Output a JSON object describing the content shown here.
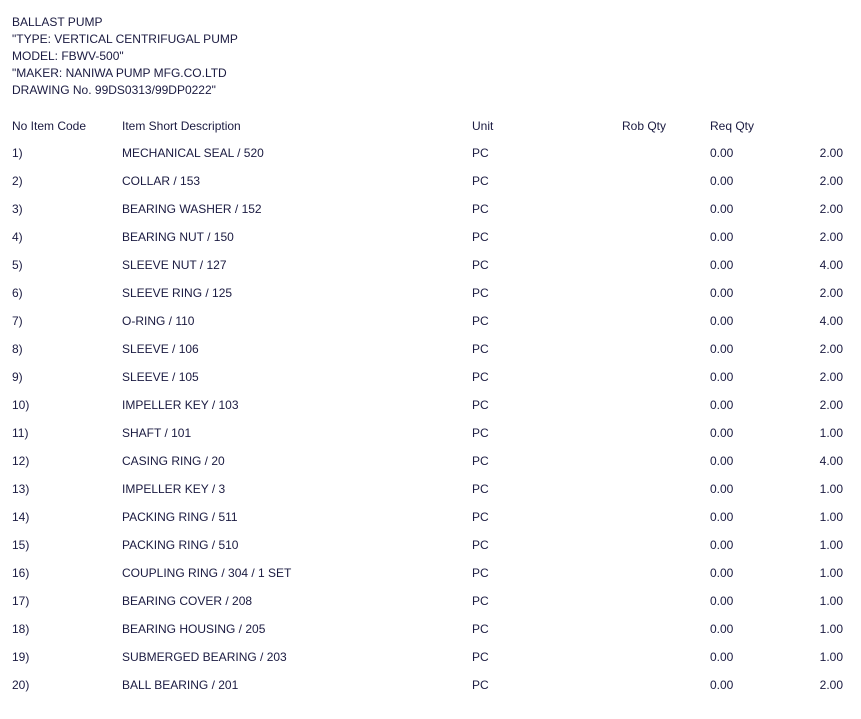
{
  "header": {
    "lines": [
      "BALLAST PUMP",
      "\"TYPE: VERTICAL CENTRIFUGAL PUMP",
      "MODEL: FBWV-500\"",
      "\"MAKER: NANIWA PUMP MFG.CO.LTD",
      "DRAWING No. 99DS0313/99DP0222\""
    ]
  },
  "columns": {
    "no": "No Item Code",
    "desc": "Item Short Description",
    "unit": "Unit",
    "rob": "Rob Qty",
    "req": "Req Qty"
  },
  "rows": [
    {
      "no": "1)",
      "desc": "MECHANICAL SEAL / 520",
      "unit": "PC",
      "req": "0.00",
      "qty": "2.00"
    },
    {
      "no": "2)",
      "desc": "COLLAR / 153",
      "unit": "PC",
      "req": "0.00",
      "qty": "2.00"
    },
    {
      "no": "3)",
      "desc": "BEARING WASHER / 152",
      "unit": "PC",
      "req": "0.00",
      "qty": "2.00"
    },
    {
      "no": "4)",
      "desc": "BEARING NUT / 150",
      "unit": "PC",
      "req": "0.00",
      "qty": "2.00"
    },
    {
      "no": "5)",
      "desc": "SLEEVE NUT / 127",
      "unit": "PC",
      "req": "0.00",
      "qty": "4.00"
    },
    {
      "no": "6)",
      "desc": "SLEEVE RING / 125",
      "unit": "PC",
      "req": "0.00",
      "qty": "2.00"
    },
    {
      "no": "7)",
      "desc": "O-RING / 110",
      "unit": "PC",
      "req": "0.00",
      "qty": "4.00"
    },
    {
      "no": "8)",
      "desc": "SLEEVE / 106",
      "unit": "PC",
      "req": "0.00",
      "qty": "2.00"
    },
    {
      "no": "9)",
      "desc": "SLEEVE / 105",
      "unit": "PC",
      "req": "0.00",
      "qty": "2.00"
    },
    {
      "no": "10)",
      "desc": "IMPELLER KEY / 103",
      "unit": "PC",
      "req": "0.00",
      "qty": "2.00"
    },
    {
      "no": "11)",
      "desc": "SHAFT / 101",
      "unit": "PC",
      "req": "0.00",
      "qty": "1.00"
    },
    {
      "no": "12)",
      "desc": "CASING RING / 20",
      "unit": "PC",
      "req": "0.00",
      "qty": "4.00"
    },
    {
      "no": "13)",
      "desc": "IMPELLER KEY / 3",
      "unit": "PC",
      "req": "0.00",
      "qty": "1.00"
    },
    {
      "no": "14)",
      "desc": "PACKING RING / 511",
      "unit": "PC",
      "req": "0.00",
      "qty": "1.00"
    },
    {
      "no": "15)",
      "desc": "PACKING RING / 510",
      "unit": "PC",
      "req": "0.00",
      "qty": "1.00"
    },
    {
      "no": "16)",
      "desc": "COUPLING RING / 304 / 1 SET",
      "unit": "PC",
      "req": "0.00",
      "qty": "1.00"
    },
    {
      "no": "17)",
      "desc": "BEARING COVER / 208",
      "unit": "PC",
      "req": "0.00",
      "qty": "1.00"
    },
    {
      "no": "18)",
      "desc": "BEARING HOUSING / 205",
      "unit": "PC",
      "req": "0.00",
      "qty": "1.00"
    },
    {
      "no": "19)",
      "desc": "SUBMERGED BEARING / 203",
      "unit": "PC",
      "req": "0.00",
      "qty": "1.00"
    },
    {
      "no": "20)",
      "desc": "BALL BEARING / 201",
      "unit": "PC",
      "req": "0.00",
      "qty": "2.00"
    }
  ]
}
